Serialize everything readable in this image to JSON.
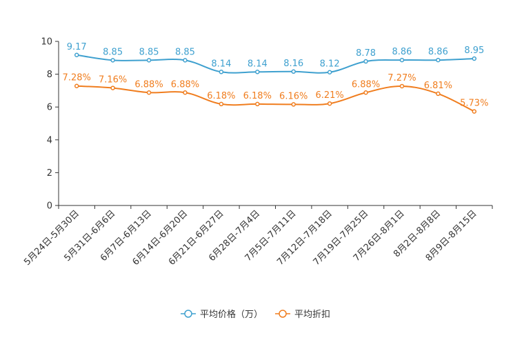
{
  "chart_data": {
    "type": "line",
    "title": "",
    "xlabel": "",
    "ylabel": "",
    "ylim": [
      0,
      10
    ],
    "yticks": [
      0,
      2,
      4,
      6,
      8,
      10
    ],
    "categories": [
      "5月24日-5月30日",
      "5月31日-6月6日",
      "6月7日-6月13日",
      "6月14日-6月20日",
      "6月21日-6月27日",
      "6月28日-7月4日",
      "7月5日-7月11日",
      "7月12日-7月18日",
      "7月19日-7月25日",
      "7月26日-8月1日",
      "8月2日-8月8日",
      "8月9日-8月15日"
    ],
    "series": [
      {
        "name": "平均价格（万）",
        "color": "#3ea0cf",
        "values": [
          9.17,
          8.85,
          8.85,
          8.85,
          8.14,
          8.14,
          8.16,
          8.12,
          8.78,
          8.86,
          8.86,
          8.95
        ],
        "labels": [
          "9.17",
          "8.85",
          "8.85",
          "8.85",
          "8.14",
          "8.14",
          "8.16",
          "8.12",
          "8.78",
          "8.86",
          "8.86",
          "8.95"
        ]
      },
      {
        "name": "平均折扣",
        "color": "#f07d1e",
        "values": [
          7.28,
          7.16,
          6.88,
          6.88,
          6.18,
          6.18,
          6.16,
          6.21,
          6.88,
          7.27,
          6.81,
          5.73
        ],
        "labels": [
          "7.28%",
          "7.16%",
          "6.88%",
          "6.88%",
          "6.18%",
          "6.18%",
          "6.16%",
          "6.21%",
          "6.88%",
          "7.27%",
          "6.81%",
          "5.73%"
        ]
      }
    ],
    "legend": {
      "position": "bottom-center"
    }
  }
}
